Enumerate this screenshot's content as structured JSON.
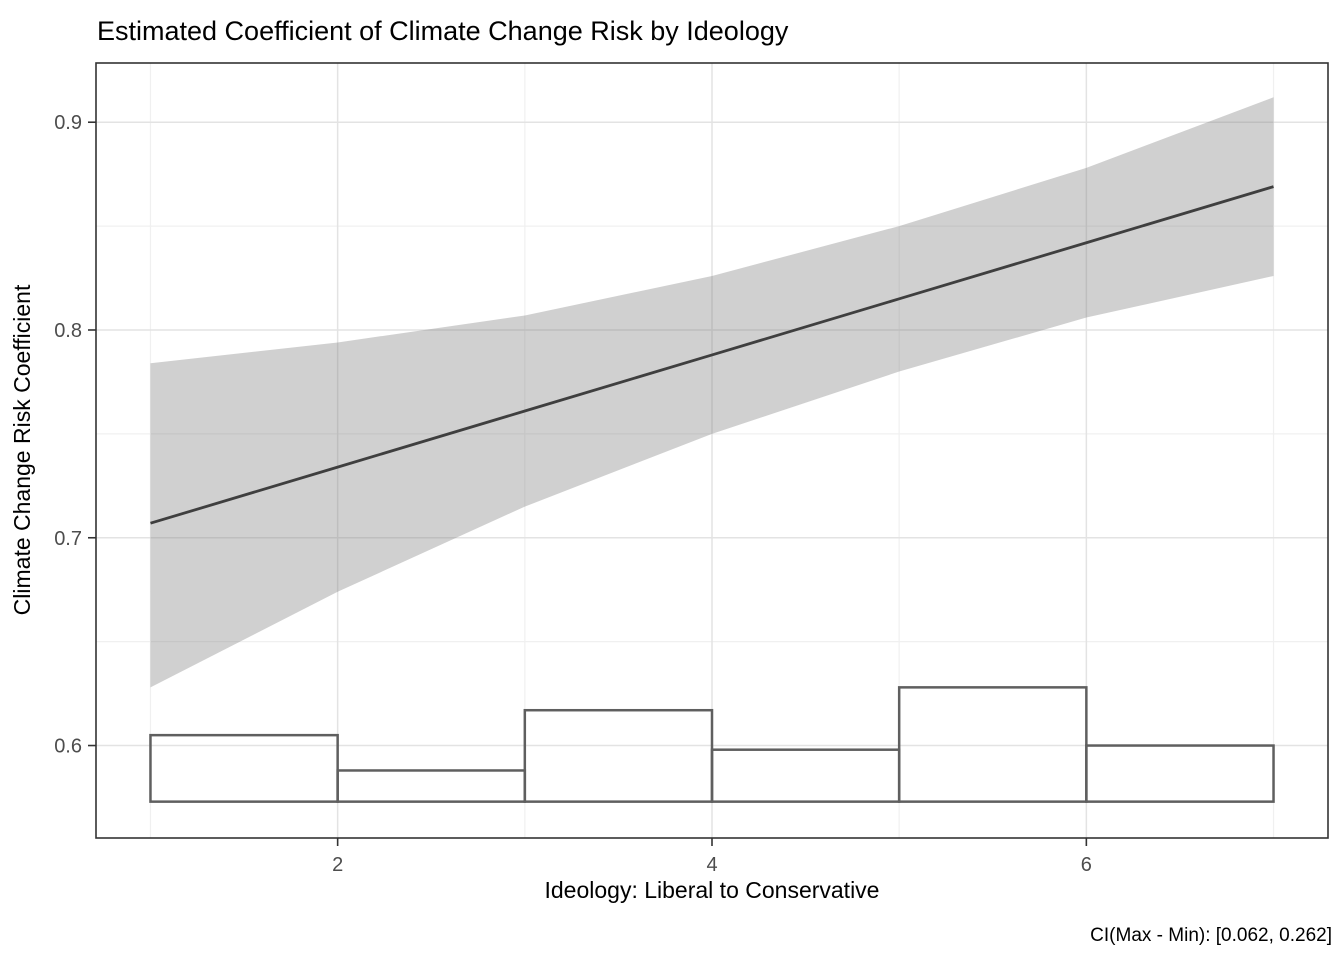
{
  "chart_data": {
    "type": "line",
    "title": "Estimated Coefficient of Climate Change Risk by Ideology",
    "xlabel": "Ideology: Liberal to Conservative",
    "ylabel": "Climate Change Risk Coefficient",
    "caption": "CI(Max - Min): [0.062, 0.262]",
    "x": [
      1,
      2,
      3,
      4,
      5,
      6,
      7
    ],
    "series": [
      {
        "name": "estimated-coefficient-line",
        "type": "line",
        "values": [
          0.707,
          0.734,
          0.761,
          0.788,
          0.815,
          0.842,
          0.869
        ]
      },
      {
        "name": "ci-upper",
        "type": "ribbon-upper",
        "values": [
          0.784,
          0.794,
          0.807,
          0.826,
          0.85,
          0.878,
          0.912
        ]
      },
      {
        "name": "ci-lower",
        "type": "ribbon-lower",
        "values": [
          0.628,
          0.674,
          0.715,
          0.75,
          0.78,
          0.806,
          0.826
        ]
      }
    ],
    "histogram": {
      "baseline": 0.573,
      "bins": [
        {
          "x0": 1,
          "x1": 2,
          "top": 0.605
        },
        {
          "x0": 2,
          "x1": 3,
          "top": 0.588
        },
        {
          "x0": 3,
          "x1": 4,
          "top": 0.617
        },
        {
          "x0": 4,
          "x1": 5,
          "top": 0.598
        },
        {
          "x0": 5,
          "x1": 6,
          "top": 0.628
        },
        {
          "x0": 6,
          "x1": 7,
          "top": 0.6
        }
      ]
    },
    "axes": {
      "xlim": [
        0.709,
        7.291
      ],
      "ylim": [
        0.5555,
        0.9285
      ],
      "x_major_ticks": [
        2,
        4,
        6
      ],
      "x_major_labels": [
        "2",
        "4",
        "6"
      ],
      "x_minor_ticks": [
        1,
        3,
        5,
        7
      ],
      "y_major_ticks": [
        0.6,
        0.7,
        0.8,
        0.9
      ],
      "y_major_labels": [
        "0.6",
        "0.7",
        "0.8",
        "0.9"
      ],
      "y_minor_ticks": [
        0.65,
        0.75,
        0.85
      ],
      "grid": true,
      "legend": "none"
    },
    "colors": {
      "ribbon_fill": "rgba(125,125,125,0.36)",
      "line_stroke": "#3f3f3f",
      "hist_stroke": "#5f5f5f",
      "grid_major": "#e3e3e3",
      "grid_minor": "#f0f0f0",
      "panel_border": "#333333",
      "tick_mark": "#333333",
      "tick_text": "#4d4d4d"
    }
  }
}
